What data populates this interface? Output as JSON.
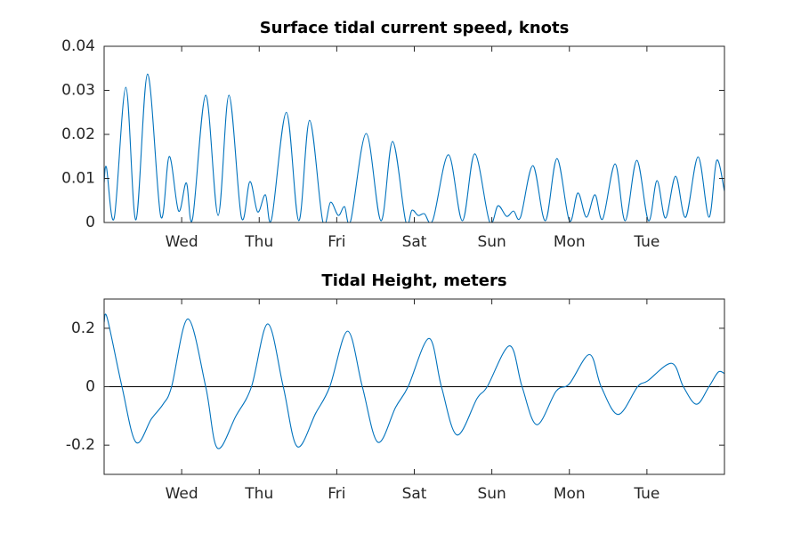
{
  "chart_data": [
    {
      "type": "line",
      "title": "Surface tidal current speed, knots",
      "color": "#0072bd",
      "x": [
        0,
        0.03,
        0.13,
        0.28,
        0.41,
        0.56,
        0.73,
        0.84,
        0.96,
        1.06,
        1.14,
        1.31,
        1.47,
        1.61,
        1.77,
        1.88,
        1.98,
        2.08,
        2.16,
        2.35,
        2.51,
        2.65,
        2.82,
        2.92,
        3.02,
        3.1,
        3.18,
        3.38,
        3.57,
        3.72,
        3.89,
        3.97,
        4.05,
        4.13,
        4.24,
        4.44,
        4.62,
        4.78,
        4.97,
        5.08,
        5.19,
        5.28,
        5.37,
        5.53,
        5.69,
        5.84,
        6.0,
        6.11,
        6.22,
        6.33,
        6.43,
        6.59,
        6.72,
        6.87,
        7.02,
        7.13,
        7.24,
        7.37,
        7.5,
        7.66,
        7.8,
        7.9,
        8.0
      ],
      "values": [
        0.009,
        0.0125,
        0.001,
        0.0307,
        0.0006,
        0.0337,
        0.0014,
        0.015,
        0.0026,
        0.009,
        0.0008,
        0.0289,
        0.0016,
        0.0289,
        0.0012,
        0.0093,
        0.0024,
        0.0063,
        0.0008,
        0.025,
        0.0004,
        0.0232,
        0.0002,
        0.0046,
        0.0016,
        0.0036,
        0.0004,
        0.0202,
        0.0004,
        0.0184,
        0.0002,
        0.0028,
        0.0016,
        0.002,
        0.0006,
        0.0154,
        0.0004,
        0.0156,
        0.0002,
        0.0038,
        0.0014,
        0.0026,
        0.0012,
        0.0129,
        0.0004,
        0.0145,
        0.0004,
        0.0067,
        0.0012,
        0.0063,
        0.0008,
        0.0133,
        0.0004,
        0.0141,
        0.0004,
        0.0095,
        0.001,
        0.0105,
        0.0012,
        0.0149,
        0.0012,
        0.0141,
        0.0071
      ],
      "xlim": [
        0,
        8
      ],
      "xticks": [
        {
          "value": 1,
          "label": "Wed"
        },
        {
          "value": 2,
          "label": "Thu"
        },
        {
          "value": 3,
          "label": "Fri"
        },
        {
          "value": 4,
          "label": "Sat"
        },
        {
          "value": 5,
          "label": "Sun"
        },
        {
          "value": 6,
          "label": "Mon"
        },
        {
          "value": 7,
          "label": "Tue"
        }
      ],
      "ylim": [
        0,
        0.04
      ],
      "yticks": [
        0,
        0.01,
        0.02,
        0.03,
        0.04
      ],
      "zero_line": false
    },
    {
      "type": "line",
      "title": "Tidal Height, meters",
      "color": "#0072bd",
      "x": [
        0,
        0.04,
        0.23,
        0.41,
        0.61,
        0.76,
        0.87,
        1.08,
        1.31,
        1.46,
        1.7,
        1.9,
        2.11,
        2.31,
        2.49,
        2.73,
        2.91,
        3.14,
        3.33,
        3.53,
        3.76,
        3.92,
        4.19,
        4.35,
        4.55,
        4.81,
        4.94,
        5.23,
        5.39,
        5.58,
        5.83,
        6.0,
        6.26,
        6.41,
        6.63,
        6.88,
        7.01,
        7.32,
        7.47,
        7.64,
        7.8,
        7.92,
        8.0
      ],
      "values": [
        0.22,
        0.235,
        0,
        -0.19,
        -0.11,
        -0.06,
        0,
        0.232,
        0,
        -0.21,
        -0.1,
        0,
        0.215,
        0,
        -0.205,
        -0.09,
        0,
        0.19,
        0,
        -0.19,
        -0.07,
        0,
        0.165,
        0,
        -0.165,
        -0.04,
        0,
        0.14,
        0,
        -0.13,
        -0.015,
        0.01,
        0.11,
        0,
        -0.095,
        0,
        0.02,
        0.08,
        0,
        -0.06,
        0,
        0.05,
        0.045
      ],
      "xlim": [
        0,
        8
      ],
      "xticks": [
        {
          "value": 1,
          "label": "Wed"
        },
        {
          "value": 2,
          "label": "Thu"
        },
        {
          "value": 3,
          "label": "Fri"
        },
        {
          "value": 4,
          "label": "Sat"
        },
        {
          "value": 5,
          "label": "Sun"
        },
        {
          "value": 6,
          "label": "Mon"
        },
        {
          "value": 7,
          "label": "Tue"
        }
      ],
      "ylim": [
        -0.3,
        0.3
      ],
      "yticks": [
        -0.2,
        0,
        0.2
      ],
      "zero_line": true
    }
  ]
}
